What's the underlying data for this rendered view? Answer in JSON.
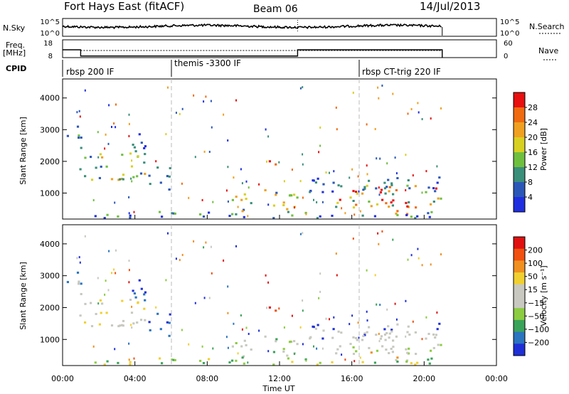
{
  "header": {
    "station": "Fort Hays East (fitACF)",
    "beam": "Beam 06",
    "date": "14/Jul/2013"
  },
  "left_labels": {
    "nsky": "N.Sky",
    "freq_line1": "Freq.",
    "freq_line2": "[MHz]",
    "cpid": "CPID"
  },
  "right_labels": {
    "nsearch": "N.Search",
    "nave": "Nave"
  },
  "noise_panel": {
    "yticks_left": [
      "10^5",
      "10^0"
    ],
    "yticks_right": [
      "10^5",
      "10^0"
    ]
  },
  "freq_panel": {
    "yticks_left": [
      "18",
      "8"
    ],
    "yticks_right": [
      "60",
      "0"
    ]
  },
  "cpid": [
    "rbsp 200 IF",
    "themis -3300 IF",
    "rbsp CT-trig 220 IF"
  ],
  "x_axis": {
    "label": "Time UT",
    "ticks": [
      "00:00",
      "04:00",
      "08:00",
      "12:00",
      "16:00",
      "20:00",
      "00:00"
    ]
  },
  "power_panel": {
    "ylabel": "Slant Range [km]",
    "yticks": [
      "1000",
      "2000",
      "3000",
      "4000"
    ],
    "colorbar_label": "Power [dB]",
    "colorbar_ticks": [
      "4",
      "8",
      "12",
      "16",
      "20",
      "24",
      "28"
    ]
  },
  "velocity_panel": {
    "ylabel": "Slant Range [km]",
    "yticks": [
      "1000",
      "2000",
      "3000",
      "4000"
    ],
    "colorbar_label": "Velocity [m s⁻¹]",
    "colorbar_ticks": [
      "200",
      "100",
      "50",
      "15",
      "−15",
      "−50",
      "−100",
      "−200"
    ]
  },
  "colors": {
    "power_scale": [
      "#1f2fe0",
      "#2b58b8",
      "#3a8f7a",
      "#6fbf3f",
      "#d8d020",
      "#f0a020",
      "#f06a10",
      "#e81010"
    ],
    "velocity_scale": [
      "#1e2fd6",
      "#2a74c0",
      "#3aa35a",
      "#8ccc40",
      "#c8c8c0",
      "#c8c8c0",
      "#f0d030",
      "#f09020",
      "#f05010",
      "#e01010"
    ]
  },
  "chart_data": [
    {
      "type": "line",
      "name": "noise",
      "x_range_hours": [
        0,
        24
      ],
      "notes_visible": "dense black noise trace; data 00:00 to 21:00"
    },
    {
      "type": "line",
      "name": "frequency",
      "x_range_hours": [
        0,
        24
      ],
      "freq_segments_mhz": [
        {
          "start": 0,
          "end": 1,
          "value": 14
        },
        {
          "start": 1,
          "end": 13,
          "value": 10.5
        },
        {
          "start": 13,
          "end": 21,
          "value": 14
        }
      ]
    },
    {
      "type": "heatmap",
      "name": "power",
      "x_range_hours": [
        0,
        24
      ],
      "y_range_km": [
        180,
        4600
      ],
      "data_end_hour": 21
    },
    {
      "type": "heatmap",
      "name": "velocity",
      "x_range_hours": [
        0,
        24
      ],
      "y_range_km": [
        180,
        4600
      ],
      "data_end_hour": 21
    }
  ]
}
